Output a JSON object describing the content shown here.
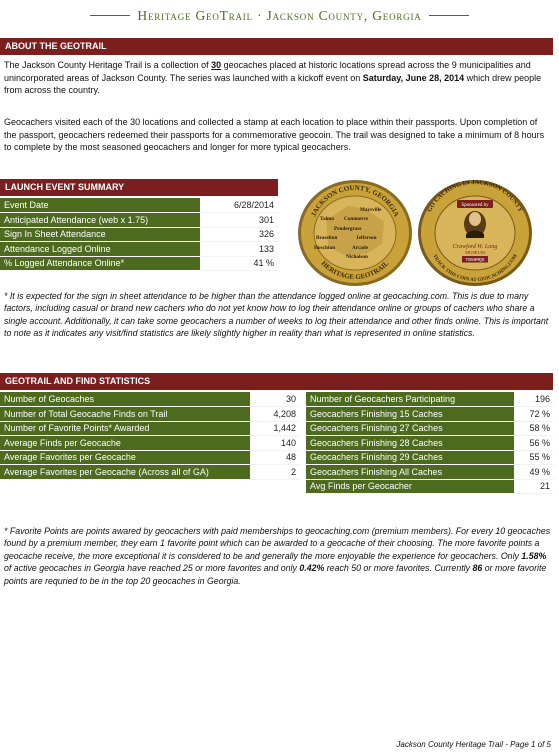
{
  "header": {
    "title": "Heritage GeoTrail · Jackson County, Georgia"
  },
  "about": {
    "heading": "ABOUT THE GEOTRAIL",
    "p1": [
      "The Jackson County Heritage Trail is a collection of ",
      "30",
      " geocaches placed at historic locations spread across the 9 municipalities and unincorporated areas of Jackson County.  The series was launched with a kickoff event on ",
      "Saturday, June 28, 2014",
      " which drew people from across the country."
    ],
    "p2": "Geocachers visited each of the 30 locations and collected a stamp at each location to place within their passports.  Upon completion of the passport, geocachers redeemed their passports for a commemorative geocoin.  The trail was designed to take a minimum of 8 hours to complete by the most seasoned geocachers and longer for more typical geocachers."
  },
  "launch": {
    "heading": "LAUNCH EVENT SUMMARY",
    "rows": [
      {
        "label": "Event Date",
        "value": "6/28/2014"
      },
      {
        "label": "Anticipated Attendance (web x 1.75)",
        "value": "301"
      },
      {
        "label": "Sign In Sheet Attendance",
        "value": "326"
      },
      {
        "label": "Attendance Logged Online",
        "value": "133"
      },
      {
        "label": "% Logged Attendance Online*",
        "value": "41 %"
      }
    ],
    "note": "* It is expected for the sign in sheet attendance to be higher than the attendance logged online at geocaching.com.  This is due to many factors, including casual or brand new cachers who do not yet know how to log their attendance online or groups of cachers who share a single account.  Additionally, it can take some geocachers a number of weeks to log their attendance and other finds online.  This is important to note as it indicates any visit/find statistics are likely slightly higher in reality than what is represented in online statistics."
  },
  "coin": {
    "front_text_top": "JACKSON COUNTY, GEORGIA",
    "front_text_bottom": "HERITAGE GEOTRAIL",
    "front_towns": [
      "Maysville",
      "Talmo",
      "Commerce",
      "Pendergrass",
      "Braselton",
      "Jefferson",
      "Hoschton",
      "Arcade",
      "Nicholson"
    ],
    "back_text_top": "GO CACHING IN JACKSON COUNTY",
    "back_text_bottom": "TRACK THIS COIN AT GEOCACHING.COM",
    "back_sponsor": "Sponsored by",
    "back_signature": "Crawford W. Long",
    "back_museum": "MUSEUM",
    "back_code": "TB5HMQG"
  },
  "stats": {
    "heading": "GEOTRAIL AND FIND STATISTICS",
    "left": [
      {
        "label": "Number of Geocaches",
        "value": "30"
      },
      {
        "label": "Number of Total Geocache Finds on Trail",
        "value": "4,208"
      },
      {
        "label": "Number of Favorite Points* Awarded",
        "value": "1,442"
      },
      {
        "label": "Average Finds per Geocache",
        "value": "140"
      },
      {
        "label": "Average Favorites per Geocache",
        "value": "48"
      },
      {
        "label": "Average Favorites per Geocache (Across all of GA)",
        "value": "2"
      }
    ],
    "right": [
      {
        "label": "Number of Geocachers Participating",
        "value": "196"
      },
      {
        "label": "Geocachers Finishing 15 Caches",
        "value": "72 %"
      },
      {
        "label": "Geocachers Finishing 27 Caches",
        "value": "58 %"
      },
      {
        "label": "Geocachers Finishing 28 Caches",
        "value": "56 %"
      },
      {
        "label": "Geocachers Finishing 29 Caches",
        "value": "55 %"
      },
      {
        "label": "Geocachers Finishing All Caches",
        "value": "49 %"
      },
      {
        "label": "Avg Finds per Geocacher",
        "value": "21"
      }
    ],
    "note": [
      "* Favorite Points are points awared by geocachers with paid memberships to geocaching.com (premium members).  For every 10 geocaches found by a premium member, they earn 1 favorite point which can be awarded to a geocache of their choosing.  The more favorite points a geocache receive, the more exceptional it is considered to be and generally the more enjoyable the experience for geocachers.  Only ",
      "1.58%",
      " of active geocaches in Georgia have reached 25 or more favorites and only ",
      "0.42%",
      " reach 50 or more favorites.  Currently ",
      "86",
      " or more favorite points are requried to be in the top 20 geocaches in Georgia."
    ]
  },
  "footer": {
    "text": "Jackson County Heritage Trail - Page 1 of 5"
  },
  "colors": {
    "section_header": "#7b1e1e",
    "table_label_bg": "#4d6b1f",
    "title_green": "#4d6b1f",
    "coin_gold": "#c9a23a"
  }
}
